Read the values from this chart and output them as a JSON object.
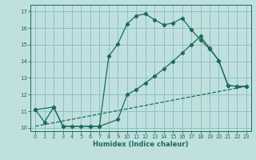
{
  "xlabel": "Humidex (Indice chaleur)",
  "bg_color": "#c0e0e0",
  "grid_color": "#90c0c0",
  "line_color": "#1a6b5a",
  "xlim": [
    -0.5,
    23.5
  ],
  "ylim": [
    9.8,
    17.4
  ],
  "xticks": [
    0,
    1,
    2,
    3,
    4,
    5,
    6,
    7,
    8,
    9,
    10,
    11,
    12,
    13,
    14,
    15,
    16,
    17,
    18,
    19,
    20,
    21,
    22,
    23
  ],
  "yticks": [
    10,
    11,
    12,
    13,
    14,
    15,
    16,
    17
  ],
  "series1_x": [
    0,
    1,
    2,
    3,
    4,
    5,
    6,
    7,
    8,
    9,
    10,
    11,
    12,
    13,
    14,
    15,
    16,
    17,
    18,
    19,
    20,
    21,
    22,
    23
  ],
  "series1_y": [
    11.1,
    10.35,
    11.25,
    10.1,
    10.1,
    10.1,
    10.1,
    10.1,
    14.3,
    15.05,
    16.25,
    16.75,
    16.85,
    16.5,
    16.2,
    16.3,
    16.6,
    15.9,
    15.3,
    14.75,
    14.05,
    12.55,
    12.5,
    12.5
  ],
  "series2_x": [
    0,
    2,
    3,
    6,
    7,
    9,
    10,
    11,
    12,
    13,
    14,
    15,
    16,
    17,
    18,
    19,
    20,
    21,
    22,
    23
  ],
  "series2_y": [
    11.1,
    11.25,
    10.1,
    10.1,
    10.1,
    10.5,
    12.0,
    12.3,
    12.7,
    13.1,
    13.55,
    14.0,
    14.5,
    15.0,
    15.5,
    14.8,
    14.05,
    12.55,
    12.5,
    12.5
  ],
  "series3_x": [
    0,
    23
  ],
  "series3_y": [
    10.1,
    12.5
  ]
}
